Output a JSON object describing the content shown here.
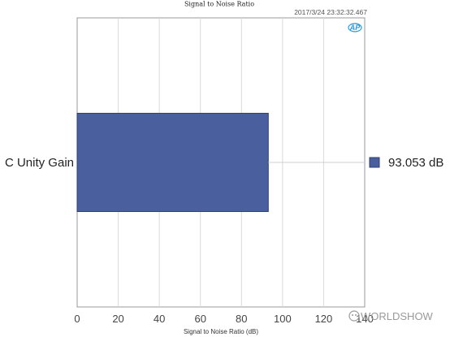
{
  "chart_data": {
    "type": "bar",
    "orientation": "horizontal",
    "title": "Signal to Noise Ratio",
    "timestamp": "2017/3/24 23:32:32.467",
    "categories": [
      "C Unity Gain"
    ],
    "series": [
      {
        "values": [
          93.053
        ],
        "color": "#4a5f9e"
      }
    ],
    "value_label": "93.053  dB",
    "xlabel": "Signal to Noise Ratio (dB)",
    "xlim": [
      0,
      140
    ],
    "xticks": [
      "0",
      "20",
      "40",
      "60",
      "80",
      "100",
      "120",
      "140"
    ],
    "grid": true,
    "legend_position": "right"
  },
  "logo_text": "AP",
  "watermark": "WORLDSHOW"
}
